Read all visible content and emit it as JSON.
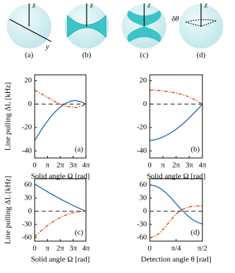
{
  "diagrams": [
    {
      "axis_labels": [
        "z",
        "y"
      ],
      "caption": "(a)"
    },
    {
      "axis_labels": [
        "z"
      ],
      "caption": "(b)"
    },
    {
      "axis_labels": [
        "z"
      ],
      "caption": "(c)"
    },
    {
      "axis_labels": [
        "z",
        "δθ"
      ],
      "caption": "(d)"
    }
  ],
  "chart_data": [
    {
      "type": "line",
      "ylabel": "Line pulling ΔL [kHz]",
      "xlabel": "Solid angle Ω [rad]",
      "annotation": "(a)",
      "x": [
        0,
        1.257,
        2.513,
        3.77,
        5.027,
        6.283,
        7.54,
        8.796,
        10.053,
        11.31,
        12.566
      ],
      "xlim": [
        0,
        12.566
      ],
      "xticks": [
        0,
        {
          "value": 3.1416,
          "label": "π"
        },
        {
          "value": 6.2832,
          "label": "2π"
        },
        {
          "value": 9.4248,
          "label": "3π"
        },
        {
          "value": 12.566,
          "label": "4π"
        }
      ],
      "ylim": [
        -46,
        25
      ],
      "yticks": [
        -40,
        -20,
        0,
        20
      ],
      "hline": 0,
      "series": [
        {
          "color": "#3572b8",
          "linestyle": "solid",
          "values": [
            -31,
            -24,
            -17.5,
            -11.5,
            -6.5,
            -2.5,
            0.5,
            2.5,
            3,
            2,
            0
          ]
        },
        {
          "color": "#d95319",
          "linestyle": "dashdot",
          "values": [
            12,
            9.5,
            7,
            4.5,
            2,
            0,
            -1.5,
            -2.5,
            -3,
            -2,
            0
          ]
        }
      ]
    },
    {
      "type": "line",
      "xlabel": "Solid angle Ω [rad]",
      "annotation": "(b)",
      "x": [
        0,
        1.257,
        2.513,
        3.77,
        5.027,
        6.283,
        7.54,
        8.796,
        10.053,
        11.31,
        12.566
      ],
      "xlim": [
        0,
        12.566
      ],
      "xticks": [
        0,
        {
          "value": 3.1416,
          "label": "π"
        },
        {
          "value": 6.2832,
          "label": "2π"
        },
        {
          "value": 9.4248,
          "label": "3π"
        },
        {
          "value": 12.566,
          "label": "4π"
        }
      ],
      "ylim": [
        -46,
        25
      ],
      "yticks": [
        -40,
        -20,
        0,
        20
      ],
      "hline": 0,
      "series": [
        {
          "color": "#3572b8",
          "linestyle": "solid",
          "values": [
            -31,
            -30.5,
            -29,
            -27,
            -24.5,
            -21.5,
            -18,
            -14,
            -9.5,
            -5,
            0
          ]
        },
        {
          "color": "#d95319",
          "linestyle": "dashdot",
          "values": [
            12,
            11.8,
            11.5,
            11,
            10.3,
            9.5,
            8.4,
            7,
            5,
            2.7,
            0
          ]
        }
      ]
    },
    {
      "type": "line",
      "ylabel": "Line pulling ΔL [kHz]",
      "xlabel": "Solid angle Ω [rad]",
      "annotation": "(c)",
      "x": [
        0,
        1.257,
        2.513,
        3.77,
        5.027,
        6.283,
        7.54,
        8.796,
        10.053,
        11.31,
        12.566
      ],
      "xlim": [
        0,
        12.566
      ],
      "xticks": [
        0,
        {
          "value": 3.1416,
          "label": "π"
        },
        {
          "value": 6.2832,
          "label": "2π"
        },
        {
          "value": 9.4248,
          "label": "3π"
        },
        {
          "value": 12.566,
          "label": "4π"
        }
      ],
      "ylim": [
        -68,
        74
      ],
      "yticks": [
        -60,
        -30,
        0,
        30,
        60
      ],
      "hline": 0,
      "series": [
        {
          "color": "#3572b8",
          "linestyle": "solid",
          "values": [
            62,
            55,
            48,
            41,
            34.5,
            28,
            22,
            16,
            10.5,
            5,
            0
          ]
        },
        {
          "color": "#d95319",
          "linestyle": "dashdot",
          "values": [
            -58,
            -47,
            -37,
            -28,
            -20.5,
            -14,
            -9,
            -5,
            -2,
            -0.5,
            0
          ]
        }
      ]
    },
    {
      "type": "line",
      "xlabel": "Detection angle θ [rad]",
      "annotation": "(d)",
      "x": [
        0,
        0.157,
        0.314,
        0.471,
        0.628,
        0.785,
        0.942,
        1.1,
        1.257,
        1.414,
        1.571
      ],
      "xlim": [
        0,
        1.571
      ],
      "xticks": [
        0,
        {
          "value": 0.7854,
          "label": "π/4"
        },
        {
          "value": 1.5708,
          "label": "π/2"
        }
      ],
      "ylim": [
        -68,
        74
      ],
      "yticks": [
        -60,
        -30,
        0,
        30,
        60
      ],
      "hline": 0,
      "series": [
        {
          "color": "#3572b8",
          "linestyle": "solid",
          "values": [
            60,
            58,
            52,
            43,
            31,
            17,
            4,
            -8,
            -18,
            -25,
            -29
          ]
        },
        {
          "color": "#d95319",
          "linestyle": "dashdot",
          "values": [
            -60,
            -57,
            -48,
            -35,
            -20,
            -6,
            3,
            8,
            11,
            12,
            12.5
          ]
        }
      ]
    }
  ]
}
